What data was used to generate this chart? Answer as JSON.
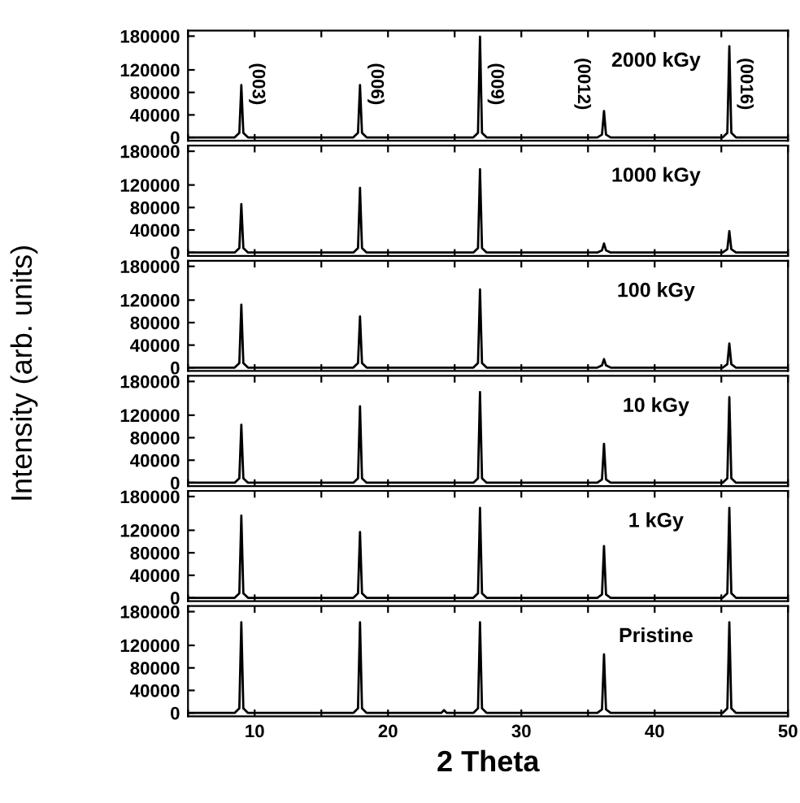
{
  "chart_data": [
    {
      "type": "line",
      "ylabel": "Intensity (arb. units)",
      "annotations": [
        "2000 kGy",
        "(003)",
        "(006)",
        "(009)",
        "(0012)",
        "(0016)"
      ],
      "series": [
        {
          "color": "#000000",
          "x": [
            5,
            8.5,
            8.85,
            9.0,
            9.15,
            9.5,
            17.4,
            17.75,
            17.9,
            18.05,
            18.4,
            26.4,
            26.75,
            26.9,
            27.05,
            27.4,
            35.7,
            36.05,
            36.2,
            36.35,
            36.7,
            45.1,
            45.45,
            45.6,
            45.75,
            46.1,
            50
          ],
          "values": [
            0,
            0,
            8000,
            93000,
            8000,
            0,
            0,
            8000,
            93000,
            8000,
            0,
            0,
            8000,
            179000,
            8000,
            0,
            0,
            5000,
            47000,
            5000,
            0,
            0,
            8000,
            162000,
            8000,
            0,
            0
          ]
        }
      ],
      "xlim": [
        5,
        50
      ],
      "ylim": [
        -6000,
        190000
      ],
      "yticks": [
        0,
        40000,
        80000,
        120000,
        180000
      ],
      "xticks": [
        {
          "value": 5,
          "label": null
        },
        {
          "value": 10,
          "label": null
        },
        {
          "value": 15,
          "label": null
        },
        {
          "value": 20,
          "label": null
        },
        {
          "value": 25,
          "label": null
        },
        {
          "value": 30,
          "label": null
        },
        {
          "value": 35,
          "label": null
        },
        {
          "value": 40,
          "label": null
        },
        {
          "value": 45,
          "label": null
        },
        {
          "value": 50,
          "label": null
        }
      ],
      "tick_labels": "y"
    },
    {
      "type": "line",
      "annotations": [
        "1000 kGy"
      ],
      "series": [
        {
          "color": "#000000",
          "x": [
            5,
            8.5,
            8.85,
            9.0,
            9.15,
            9.5,
            17.4,
            17.75,
            17.9,
            18.05,
            18.4,
            26.4,
            26.75,
            26.9,
            27.05,
            27.4,
            35.7,
            36.05,
            36.2,
            36.35,
            36.7,
            45.1,
            45.45,
            45.6,
            45.75,
            46.1,
            50
          ],
          "values": [
            0,
            0,
            8000,
            86000,
            8000,
            0,
            0,
            8000,
            115000,
            8000,
            0,
            0,
            8000,
            148000,
            8000,
            0,
            0,
            4000,
            16000,
            4000,
            0,
            0,
            6000,
            38000,
            6000,
            0,
            0
          ]
        }
      ],
      "xlim": [
        5,
        50
      ],
      "ylim": [
        -6000,
        190000
      ],
      "yticks": [
        0,
        40000,
        80000,
        120000,
        180000
      ],
      "xticks": [
        {
          "value": 5,
          "label": null
        },
        {
          "value": 10,
          "label": null
        },
        {
          "value": 15,
          "label": null
        },
        {
          "value": 20,
          "label": null
        },
        {
          "value": 25,
          "label": null
        },
        {
          "value": 30,
          "label": null
        },
        {
          "value": 35,
          "label": null
        },
        {
          "value": 40,
          "label": null
        },
        {
          "value": 45,
          "label": null
        },
        {
          "value": 50,
          "label": null
        }
      ],
      "tick_labels": "y"
    },
    {
      "type": "line",
      "annotations": [
        "100 kGy"
      ],
      "series": [
        {
          "color": "#000000",
          "x": [
            5,
            8.5,
            8.85,
            9.0,
            9.15,
            9.5,
            17.4,
            17.75,
            17.9,
            18.05,
            18.4,
            26.4,
            26.75,
            26.9,
            27.05,
            27.4,
            35.7,
            36.05,
            36.2,
            36.35,
            36.7,
            45.1,
            45.45,
            45.6,
            45.75,
            46.1,
            50
          ],
          "values": [
            0,
            0,
            8000,
            112000,
            8000,
            0,
            0,
            8000,
            91000,
            8000,
            0,
            0,
            8000,
            139000,
            8000,
            0,
            0,
            4000,
            15000,
            4000,
            0,
            0,
            6000,
            43000,
            6000,
            0,
            0
          ]
        }
      ],
      "xlim": [
        5,
        50
      ],
      "ylim": [
        -6000,
        190000
      ],
      "yticks": [
        0,
        40000,
        80000,
        120000,
        180000
      ],
      "xticks": [
        {
          "value": 5,
          "label": null
        },
        {
          "value": 10,
          "label": null
        },
        {
          "value": 15,
          "label": null
        },
        {
          "value": 20,
          "label": null
        },
        {
          "value": 25,
          "label": null
        },
        {
          "value": 30,
          "label": null
        },
        {
          "value": 35,
          "label": null
        },
        {
          "value": 40,
          "label": null
        },
        {
          "value": 45,
          "label": null
        },
        {
          "value": 50,
          "label": null
        }
      ],
      "tick_labels": "y"
    },
    {
      "type": "line",
      "annotations": [
        "10 kGy"
      ],
      "series": [
        {
          "color": "#000000",
          "x": [
            5,
            8.5,
            8.85,
            9.0,
            9.15,
            9.5,
            17.4,
            17.75,
            17.9,
            18.05,
            18.4,
            26.4,
            26.75,
            26.9,
            27.05,
            27.4,
            35.7,
            36.05,
            36.2,
            36.35,
            36.7,
            45.1,
            45.45,
            45.6,
            45.75,
            46.1,
            50
          ],
          "values": [
            0,
            0,
            8000,
            103000,
            8000,
            0,
            0,
            8000,
            136000,
            8000,
            0,
            0,
            8000,
            161000,
            8000,
            0,
            0,
            6000,
            69000,
            6000,
            0,
            0,
            8000,
            152000,
            8000,
            0,
            0
          ]
        }
      ],
      "xlim": [
        5,
        50
      ],
      "ylim": [
        -6000,
        190000
      ],
      "yticks": [
        0,
        40000,
        80000,
        120000,
        180000
      ],
      "xticks": [
        {
          "value": 5,
          "label": null
        },
        {
          "value": 10,
          "label": null
        },
        {
          "value": 15,
          "label": null
        },
        {
          "value": 20,
          "label": null
        },
        {
          "value": 25,
          "label": null
        },
        {
          "value": 30,
          "label": null
        },
        {
          "value": 35,
          "label": null
        },
        {
          "value": 40,
          "label": null
        },
        {
          "value": 45,
          "label": null
        },
        {
          "value": 50,
          "label": null
        }
      ],
      "tick_labels": "y"
    },
    {
      "type": "line",
      "annotations": [
        "1 kGy"
      ],
      "series": [
        {
          "color": "#000000",
          "x": [
            5,
            8.5,
            8.85,
            9.0,
            9.15,
            9.5,
            17.4,
            17.75,
            17.9,
            18.05,
            18.4,
            26.4,
            26.75,
            26.9,
            27.05,
            27.4,
            35.7,
            36.05,
            36.2,
            36.35,
            36.7,
            45.1,
            45.45,
            45.6,
            45.75,
            46.1,
            50
          ],
          "values": [
            0,
            0,
            8000,
            146000,
            8000,
            0,
            0,
            8000,
            117000,
            8000,
            0,
            0,
            8000,
            160000,
            8000,
            0,
            0,
            6000,
            92000,
            6000,
            0,
            0,
            8000,
            160000,
            8000,
            0,
            0
          ]
        }
      ],
      "xlim": [
        5,
        50
      ],
      "ylim": [
        -6000,
        190000
      ],
      "yticks": [
        0,
        40000,
        80000,
        120000,
        180000
      ],
      "xticks": [
        {
          "value": 5,
          "label": null
        },
        {
          "value": 10,
          "label": null
        },
        {
          "value": 15,
          "label": null
        },
        {
          "value": 20,
          "label": null
        },
        {
          "value": 25,
          "label": null
        },
        {
          "value": 30,
          "label": null
        },
        {
          "value": 35,
          "label": null
        },
        {
          "value": 40,
          "label": null
        },
        {
          "value": 45,
          "label": null
        },
        {
          "value": 50,
          "label": null
        }
      ],
      "tick_labels": "y"
    },
    {
      "type": "line",
      "xlabel": "2 Theta",
      "annotations": [
        "Pristine"
      ],
      "series": [
        {
          "color": "#000000",
          "x": [
            5,
            8.5,
            8.85,
            9.0,
            9.15,
            9.5,
            17.4,
            17.75,
            17.9,
            18.05,
            18.4,
            24.0,
            24.2,
            24.4,
            26.4,
            26.75,
            26.9,
            27.05,
            27.4,
            35.7,
            36.05,
            36.2,
            36.35,
            36.7,
            45.1,
            45.45,
            45.6,
            45.75,
            46.1,
            50
          ],
          "values": [
            0,
            0,
            8000,
            161000,
            8000,
            0,
            0,
            8000,
            161000,
            8000,
            0,
            0,
            5000,
            0,
            0,
            8000,
            161000,
            8000,
            0,
            0,
            6000,
            104000,
            6000,
            0,
            0,
            8000,
            161000,
            8000,
            0,
            0
          ]
        }
      ],
      "xlim": [
        5,
        50
      ],
      "ylim": [
        -6000,
        190000
      ],
      "yticks": [
        0,
        40000,
        80000,
        120000,
        180000
      ],
      "xticks": [
        {
          "value": 5,
          "label": null
        },
        10,
        {
          "value": 15,
          "label": null
        },
        20,
        {
          "value": 25,
          "label": null
        },
        30,
        {
          "value": 35,
          "label": null
        },
        40,
        {
          "value": 45,
          "label": null
        },
        50
      ]
    }
  ]
}
